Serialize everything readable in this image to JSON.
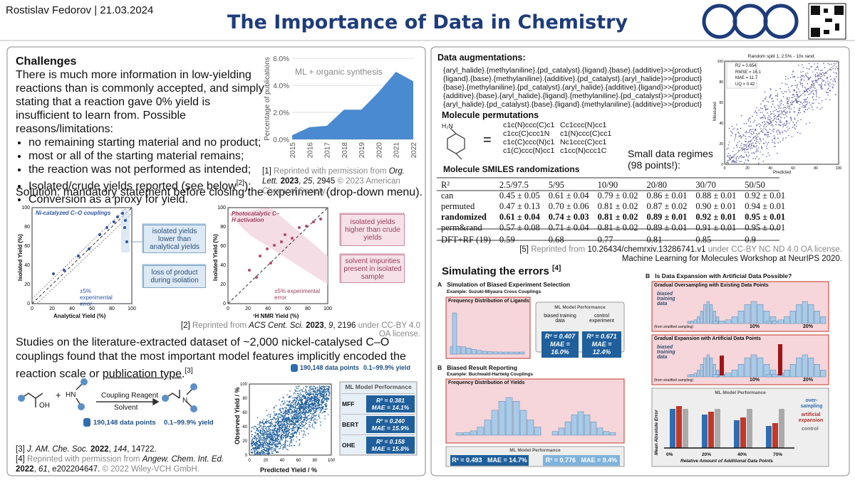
{
  "header": {
    "author": "Rostislav Fedorov | 21.03.2024",
    "title": "The Importance of Data in Chemistry"
  },
  "challenges": {
    "heading": "Challenges",
    "intro": "There is much more information in low-yielding reactions than is commonly accepted, and simply stating that a reaction gave 0% yield is insufficient to learn from. Possible reasons/limitations:",
    "bullets": [
      "no remaining starting material and no product;",
      "most or all of the starting material remains;",
      "the reaction was not performed as intended;",
      {
        "text": "Isolated/crude yields reported (see below",
        "ref": "[2]",
        "after": ");"
      },
      "Conversion as a proxy for yield."
    ],
    "solution": "Solution: mandatory statement before closing the experiment (drop-down menu)."
  },
  "chart_data": {
    "type": "area",
    "annotation": "ML + organic synthesis",
    "ylabel": "Percentage of publications",
    "categories": [
      "2015",
      "2016",
      "2017",
      "2018",
      "2019",
      "2020",
      "2021",
      "2022"
    ],
    "values": [
      0.3,
      0.9,
      1.0,
      2.2,
      2.2,
      3.5,
      5.0,
      4.3
    ],
    "color": "#4a8ad0",
    "ylim": [
      0,
      6
    ],
    "yticks": [
      {
        "value": 0,
        "label": "0.0%"
      },
      {
        "value": 2,
        "label": "2.0%"
      },
      {
        "value": 4,
        "label": "4.0%"
      },
      {
        "value": 6,
        "label": "6.0%"
      }
    ],
    "grid": true
  },
  "ref1": [
    "[1] ",
    "Reprinted with permission from ",
    "Org. Lett. ",
    "2023",
    ", ",
    "25",
    ", 2945 ",
    "© 2023 American Chemical Society."
  ],
  "yield_figures": [
    {
      "title": "Ni-catalyzed C–O couplings",
      "ylabel": "Isolated Yield (%)",
      "xlabel": "Analytical Yield (%)",
      "ticks": [
        "0",
        "20",
        "40",
        "60",
        "80",
        "100"
      ],
      "notes": [
        "isolated yields lower than analytical yields",
        "loss of product during isolation"
      ],
      "error": "±5% experimental error"
    },
    {
      "title": "Photocatalytic C–H activation",
      "ylabel": "Isolated Yield (%)",
      "xlabel": "¹H NMR Yield (%)",
      "ticks": [
        "0",
        "20",
        "40",
        "60",
        "80",
        "100"
      ],
      "notes": [
        "isolated yields higher than crude yields",
        "solvent impurities present in isolated sample"
      ],
      "error": "±5% experimental error"
    }
  ],
  "ref2": [
    "[2] ",
    "Reprinted from ",
    "ACS Cent. Sci. ",
    "2023",
    ", ",
    "9",
    ", 2196 ",
    "under CC-BY 4.0 OA license."
  ],
  "studies": {
    "text": "Studies on the literature-extracted dataset of ~2,000 nickel-catalysed C–O couplings found that the most important model features implicitly encoded the reaction scale or ",
    "underlined": "publication type",
    "end": ".",
    "ref": "[3]"
  },
  "scheme": {
    "reagent": "Coupling Reagent",
    "solvent": "Solvent",
    "oh": "OH",
    "hn": "HN",
    "n": "N",
    "plus": "+",
    "points": "190,148 data points",
    "yield": "0.1–99.9% yield"
  },
  "scatter_fig": {
    "ylabel": "Observed Yield / %",
    "xlabel": "Predicted Yield / %",
    "ticks": [
      "0",
      "20",
      "40",
      "60",
      "80",
      "100"
    ],
    "points": "190,148 data points",
    "yield": "0.1–99.9% yield"
  },
  "ml_performance": {
    "title": "ML Model Performance",
    "rows": [
      {
        "model": "MFF",
        "r2": "R² = 0.381",
        "mae": "MAE = 14.1%"
      },
      {
        "model": "BERT",
        "r2": "R² = 0.240",
        "mae": "MAE = 15.9%"
      },
      {
        "model": "OHE",
        "r2": "R² = 0.158",
        "mae": "MAE = 15.8%"
      }
    ]
  },
  "refs": [
    [
      "[3] ",
      "J. AM. Che. Soc. ",
      "2022",
      ", ",
      "144",
      ", 14722."
    ],
    [
      "[4] ",
      "Reprinted with permission from ",
      "Angew. Chem. Int. Ed. ",
      "2022",
      ", ",
      "61",
      ", e202204647. ",
      "© 2022 Wiley-VCH GmbH."
    ]
  ],
  "augmentation": {
    "heading": "Data augmentations:",
    "lines": [
      "{aryl_halide}.{methylaniline}.{pd_catalyst}.{ligand}.{base}.{additive}>>{product}",
      "{ligand}.{base}.{methylaniline}.{additive}.{pd_catalyst}.{aryl_halide}>>{product}",
      "{base}.{methylaniline}.{pd_catalyst}.{aryl_halide}.{additive}.{ligand}>>{product}",
      "{additive}.{base}.{aryl_halide}.{ligand}.{methylaniline}.{pd_catalyst}>>{product}",
      "{aryl_halide}.{pd_catalyst}.{base}.{ligand}.{methylaniline}.{additive}>>{product}"
    ],
    "perm_heading": "Molecule permutations",
    "nh2": "H₂N",
    "equals": "=",
    "smiles": [
      "c1c(N)ccc(C)c1",
      "Cc1ccc(N)cc1",
      "c1cc(C)ccc1N",
      "c1(N)ccc(C)cc1",
      "c1c(C)ccc(N)c1",
      "Nc1ccc(C)cc1",
      "c1(C)ccc(N)cc1",
      "c1cc(N)ccc1C"
    ],
    "small_data": "Small data regimes (98 points!):"
  },
  "regression_plot": {
    "title": "Random split 1, 2.5% - 10x rand.",
    "stats": [
      "R2 = 0.654",
      "RMSE = 16.1",
      "MAE = 11.7",
      "UQ = 0.42"
    ],
    "xlabel": "Predicted",
    "ylabel": "Measured",
    "ticks": [
      "0",
      "20",
      "40",
      "60",
      "80",
      "100"
    ]
  },
  "randomization_table": {
    "heading": "Molecule SMILES randomizations",
    "header": [
      "R²",
      "2.5/97.5",
      "5/95",
      "10/90",
      "20/80",
      "30/70",
      "50/50"
    ],
    "rows": [
      [
        "can",
        "0.45 ± 0.05",
        "0.61 ± 0.04",
        "0.79 ± 0.02",
        "0.86 ± 0.01",
        "0.88 ± 0.01",
        "0.92 ± 0.01"
      ],
      [
        "permuted",
        "0.47 ± 0.13",
        "0.70 ± 0.06",
        "0.81 ± 0.02",
        "0.87 ± 0.02",
        "0.90 ± 0.01",
        "0.94 ± 0.01"
      ],
      [
        "randomized",
        "0.61 ± 0.04",
        "0.74 ± 0.03",
        "0.81 ± 0.02",
        "0.89 ± 0.01",
        "0.92 ± 0.01",
        "0.95 ± 0.01"
      ],
      [
        "perm&rand",
        "0.57 ± 0.08",
        "0.71 ± 0.04",
        "0.81 ± 0.02",
        "0.89 ± 0.01",
        "0.91 ± 0.01",
        "0.95 ± 0.01"
      ],
      [
        "DFT+RF (19)",
        "0.59",
        "0.68",
        "0.77",
        "0.81",
        "0.85",
        "0.9"
      ]
    ]
  },
  "ref5": [
    "[5] ",
    "Reprinted from ",
    "10.26434/chemrxiv.13286741.v1",
    " under CC-BY NC ND 4.0 OA license.",
    "Machine Learning for Molecules Workshop at NeurIPS 2020."
  ],
  "errors": {
    "heading": "Simulating the errors ",
    "ref": "[4]",
    "a": {
      "letter": "A",
      "title": "Simulation of Biased Experiment Selection",
      "example": "Example: Suzuki-Miyaura Cross Couplings",
      "hist": "Frequency Distribution of Ligands",
      "perf": "ML Model Performance",
      "labels": [
        "biased training data",
        "control experiment"
      ],
      "r2": [
        "R² = 0.407",
        "R² = 0.671"
      ],
      "mae": [
        "MAE = 16.0%",
        "MAE = 12.4%"
      ]
    },
    "b": {
      "letter": "B",
      "title": "Biased Result Reporting",
      "example": "Example: Buchwald-Hartwig Couplings",
      "hist": "Frequency Distribution of Yields",
      "perf": "ML Model Performance",
      "r2": [
        "R² = 0.493",
        "R² = 0.776"
      ],
      "mae": [
        "MAE = 14.7%",
        "MAE = 9.4%"
      ]
    },
    "c": {
      "letter": "B",
      "title": "Is Data Expansion with Artificial Data Possible?",
      "oversampling": "Gradual Oversampling with Existing Data Points",
      "expansion": "Gradual Expansion with Artificial Data Points",
      "biased": "biased training data",
      "steps": [
        "10%",
        "20%"
      ],
      "stratified": "(from stratified sampling)",
      "perf": "ML Model Performance",
      "legend": [
        "over-sampling",
        "artificial expansion",
        "control"
      ],
      "ylabel": "Mean Absolute Error",
      "xticks": [
        "0%",
        "20%",
        "40%",
        "70%"
      ],
      "xlabel": "Relative Amount of Additional Data Points"
    }
  }
}
